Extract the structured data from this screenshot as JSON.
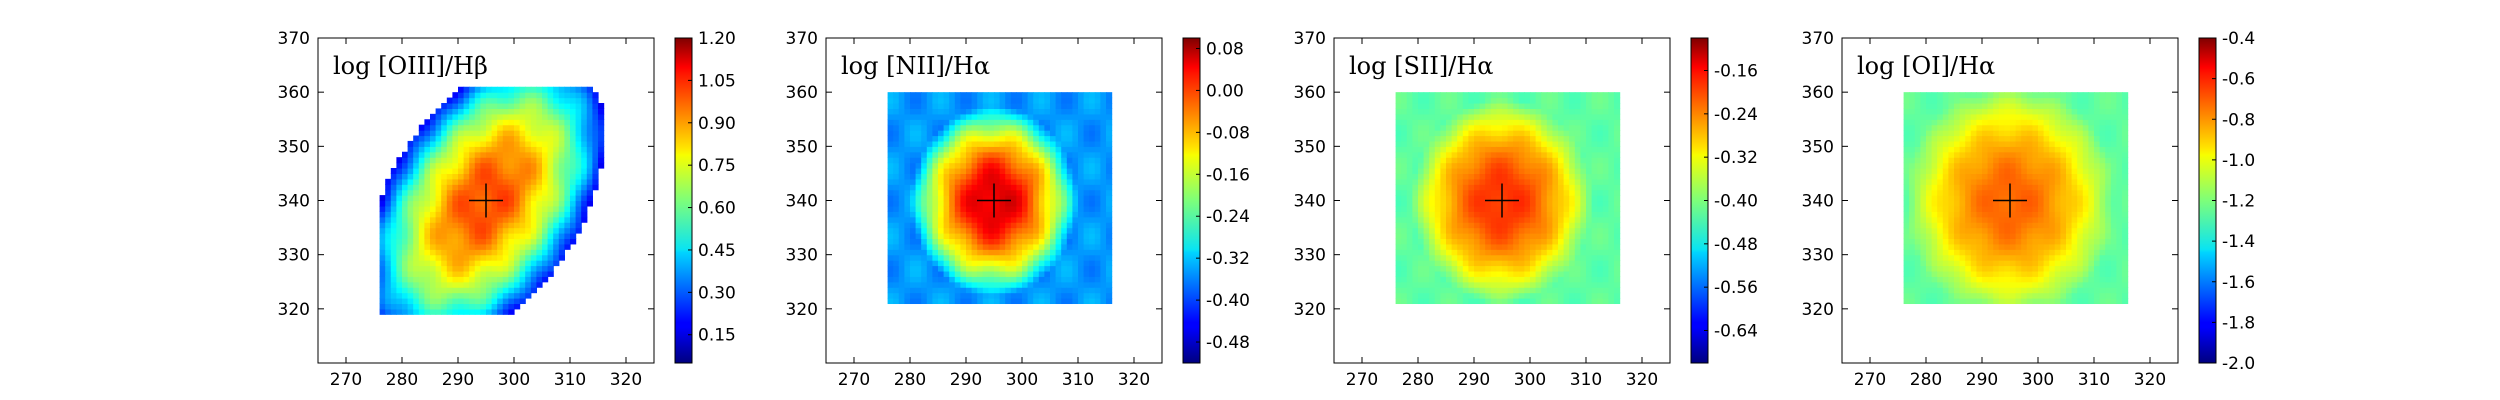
{
  "chart_data": [
    {
      "type": "heatmap",
      "label": "log [OIII]/Hβ",
      "xlim": [
        265,
        325
      ],
      "ylim": [
        310,
        370
      ],
      "xticks": [
        270,
        280,
        290,
        300,
        310,
        320
      ],
      "yticks": [
        320,
        330,
        340,
        350,
        360,
        370
      ],
      "colorbar": {
        "min": 0.05,
        "max": 1.2,
        "ticks": [
          "0.15",
          "0.30",
          "0.45",
          "0.60",
          "0.75",
          "0.90",
          "1.05",
          "1.20"
        ]
      },
      "center": [
        295,
        340
      ],
      "map": {
        "peak": 0.98,
        "edge": 0.2,
        "rx": 14,
        "ry": 20,
        "tilt": -0.35,
        "clip": [
          276,
          316,
          319,
          361
        ]
      }
    },
    {
      "type": "heatmap",
      "label": "log [NII]/Hα",
      "xlim": [
        265,
        325
      ],
      "ylim": [
        310,
        370
      ],
      "xticks": [
        270,
        280,
        290,
        300,
        310,
        320
      ],
      "yticks": [
        320,
        330,
        340,
        350,
        360,
        370
      ],
      "colorbar": {
        "min": -0.52,
        "max": 0.1,
        "ticks": [
          "0.08",
          "0.00",
          "-0.08",
          "-0.16",
          "-0.24",
          "-0.32",
          "-0.40",
          "-0.48"
        ]
      },
      "center": [
        295,
        340
      ],
      "map": {
        "peak": 0.05,
        "edge": -0.35,
        "rx": 11,
        "ry": 13,
        "tilt": 0.0,
        "clip": [
          276,
          316,
          321,
          360
        ]
      }
    },
    {
      "type": "heatmap",
      "label": "log [SII]/Hα",
      "xlim": [
        265,
        325
      ],
      "ylim": [
        310,
        370
      ],
      "xticks": [
        270,
        280,
        290,
        300,
        310,
        320
      ],
      "yticks": [
        320,
        330,
        340,
        350,
        360,
        370
      ],
      "colorbar": {
        "min": -0.7,
        "max": -0.1,
        "ticks": [
          "-0.16",
          "-0.24",
          "-0.32",
          "-0.40",
          "-0.48",
          "-0.56",
          "-0.64"
        ]
      },
      "center": [
        295,
        340
      ],
      "map": {
        "peak": -0.2,
        "edge": -0.42,
        "rx": 12,
        "ry": 14,
        "tilt": 0.0,
        "clip": [
          276,
          316,
          321,
          360
        ]
      }
    },
    {
      "type": "heatmap",
      "label": "log [OI]/Hα",
      "xlim": [
        265,
        325
      ],
      "ylim": [
        310,
        370
      ],
      "xticks": [
        270,
        280,
        290,
        300,
        310,
        320
      ],
      "yticks": [
        320,
        330,
        340,
        350,
        360,
        370
      ],
      "colorbar": {
        "min": -2.0,
        "max": -0.4,
        "ticks": [
          "-0.4",
          "-0.6",
          "-0.8",
          "-1.0",
          "-1.2",
          "-1.4",
          "-1.6",
          "-1.8",
          "-2.0"
        ]
      },
      "center": [
        295,
        340
      ],
      "map": {
        "peak": -0.75,
        "edge": -1.25,
        "rx": 14,
        "ry": 16,
        "tilt": 0.0,
        "clip": [
          276,
          316,
          321,
          360
        ]
      }
    }
  ]
}
